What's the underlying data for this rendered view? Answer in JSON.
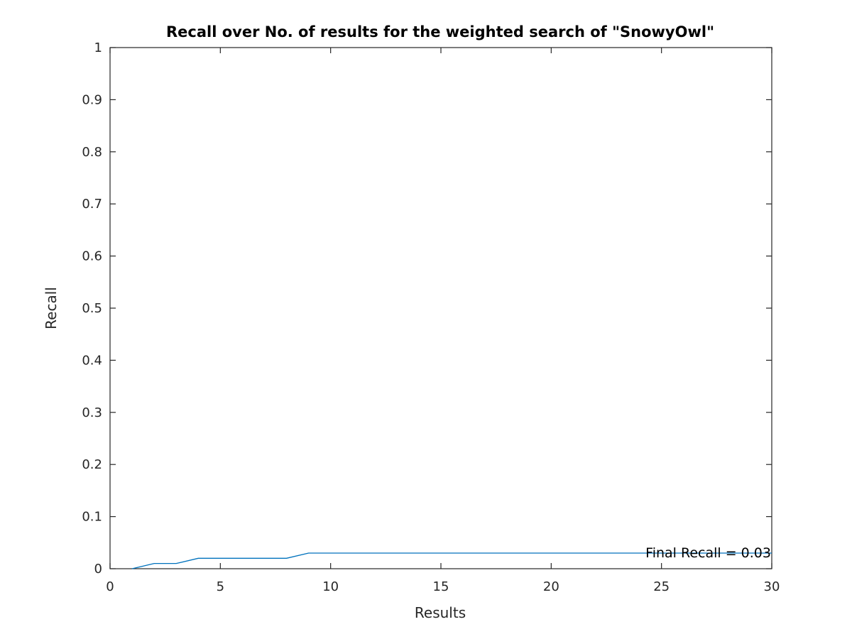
{
  "chart_data": {
    "type": "line",
    "title": "Recall over No. of results for the weighted search of \"SnowyOwl\"",
    "xlabel": "Results",
    "ylabel": "Recall",
    "xlim": [
      0,
      30
    ],
    "ylim": [
      0,
      1
    ],
    "x_ticks": [
      0,
      5,
      10,
      15,
      20,
      25,
      30
    ],
    "x_tick_labels": [
      "0",
      "5",
      "10",
      "15",
      "20",
      "25",
      "30"
    ],
    "y_ticks": [
      0,
      0.1,
      0.2,
      0.3,
      0.4,
      0.5,
      0.6,
      0.7,
      0.8,
      0.9,
      1
    ],
    "y_tick_labels": [
      "0",
      "0.1",
      "0.2",
      "0.3",
      "0.4",
      "0.5",
      "0.6",
      "0.7",
      "0.8",
      "0.9",
      "1"
    ],
    "grid": false,
    "legend": "none",
    "series": [
      {
        "color": "#0072bd",
        "x": [
          1,
          2,
          3,
          4,
          5,
          6,
          7,
          8,
          9,
          10,
          11,
          12,
          13,
          14,
          15,
          16,
          17,
          18,
          19,
          20,
          21,
          22,
          23,
          24,
          25,
          26,
          27,
          28,
          29,
          30
        ],
        "y": [
          0,
          0.01,
          0.01,
          0.02,
          0.02,
          0.02,
          0.02,
          0.02,
          0.03,
          0.03,
          0.03,
          0.03,
          0.03,
          0.03,
          0.03,
          0.03,
          0.03,
          0.03,
          0.03,
          0.03,
          0.03,
          0.03,
          0.03,
          0.03,
          0.03,
          0.03,
          0.03,
          0.03,
          0.03,
          0.03
        ]
      }
    ],
    "annotations": [
      {
        "text": "Final Recall = 0.03",
        "x": 30,
        "y": 0.03,
        "anchor": "right"
      }
    ]
  }
}
